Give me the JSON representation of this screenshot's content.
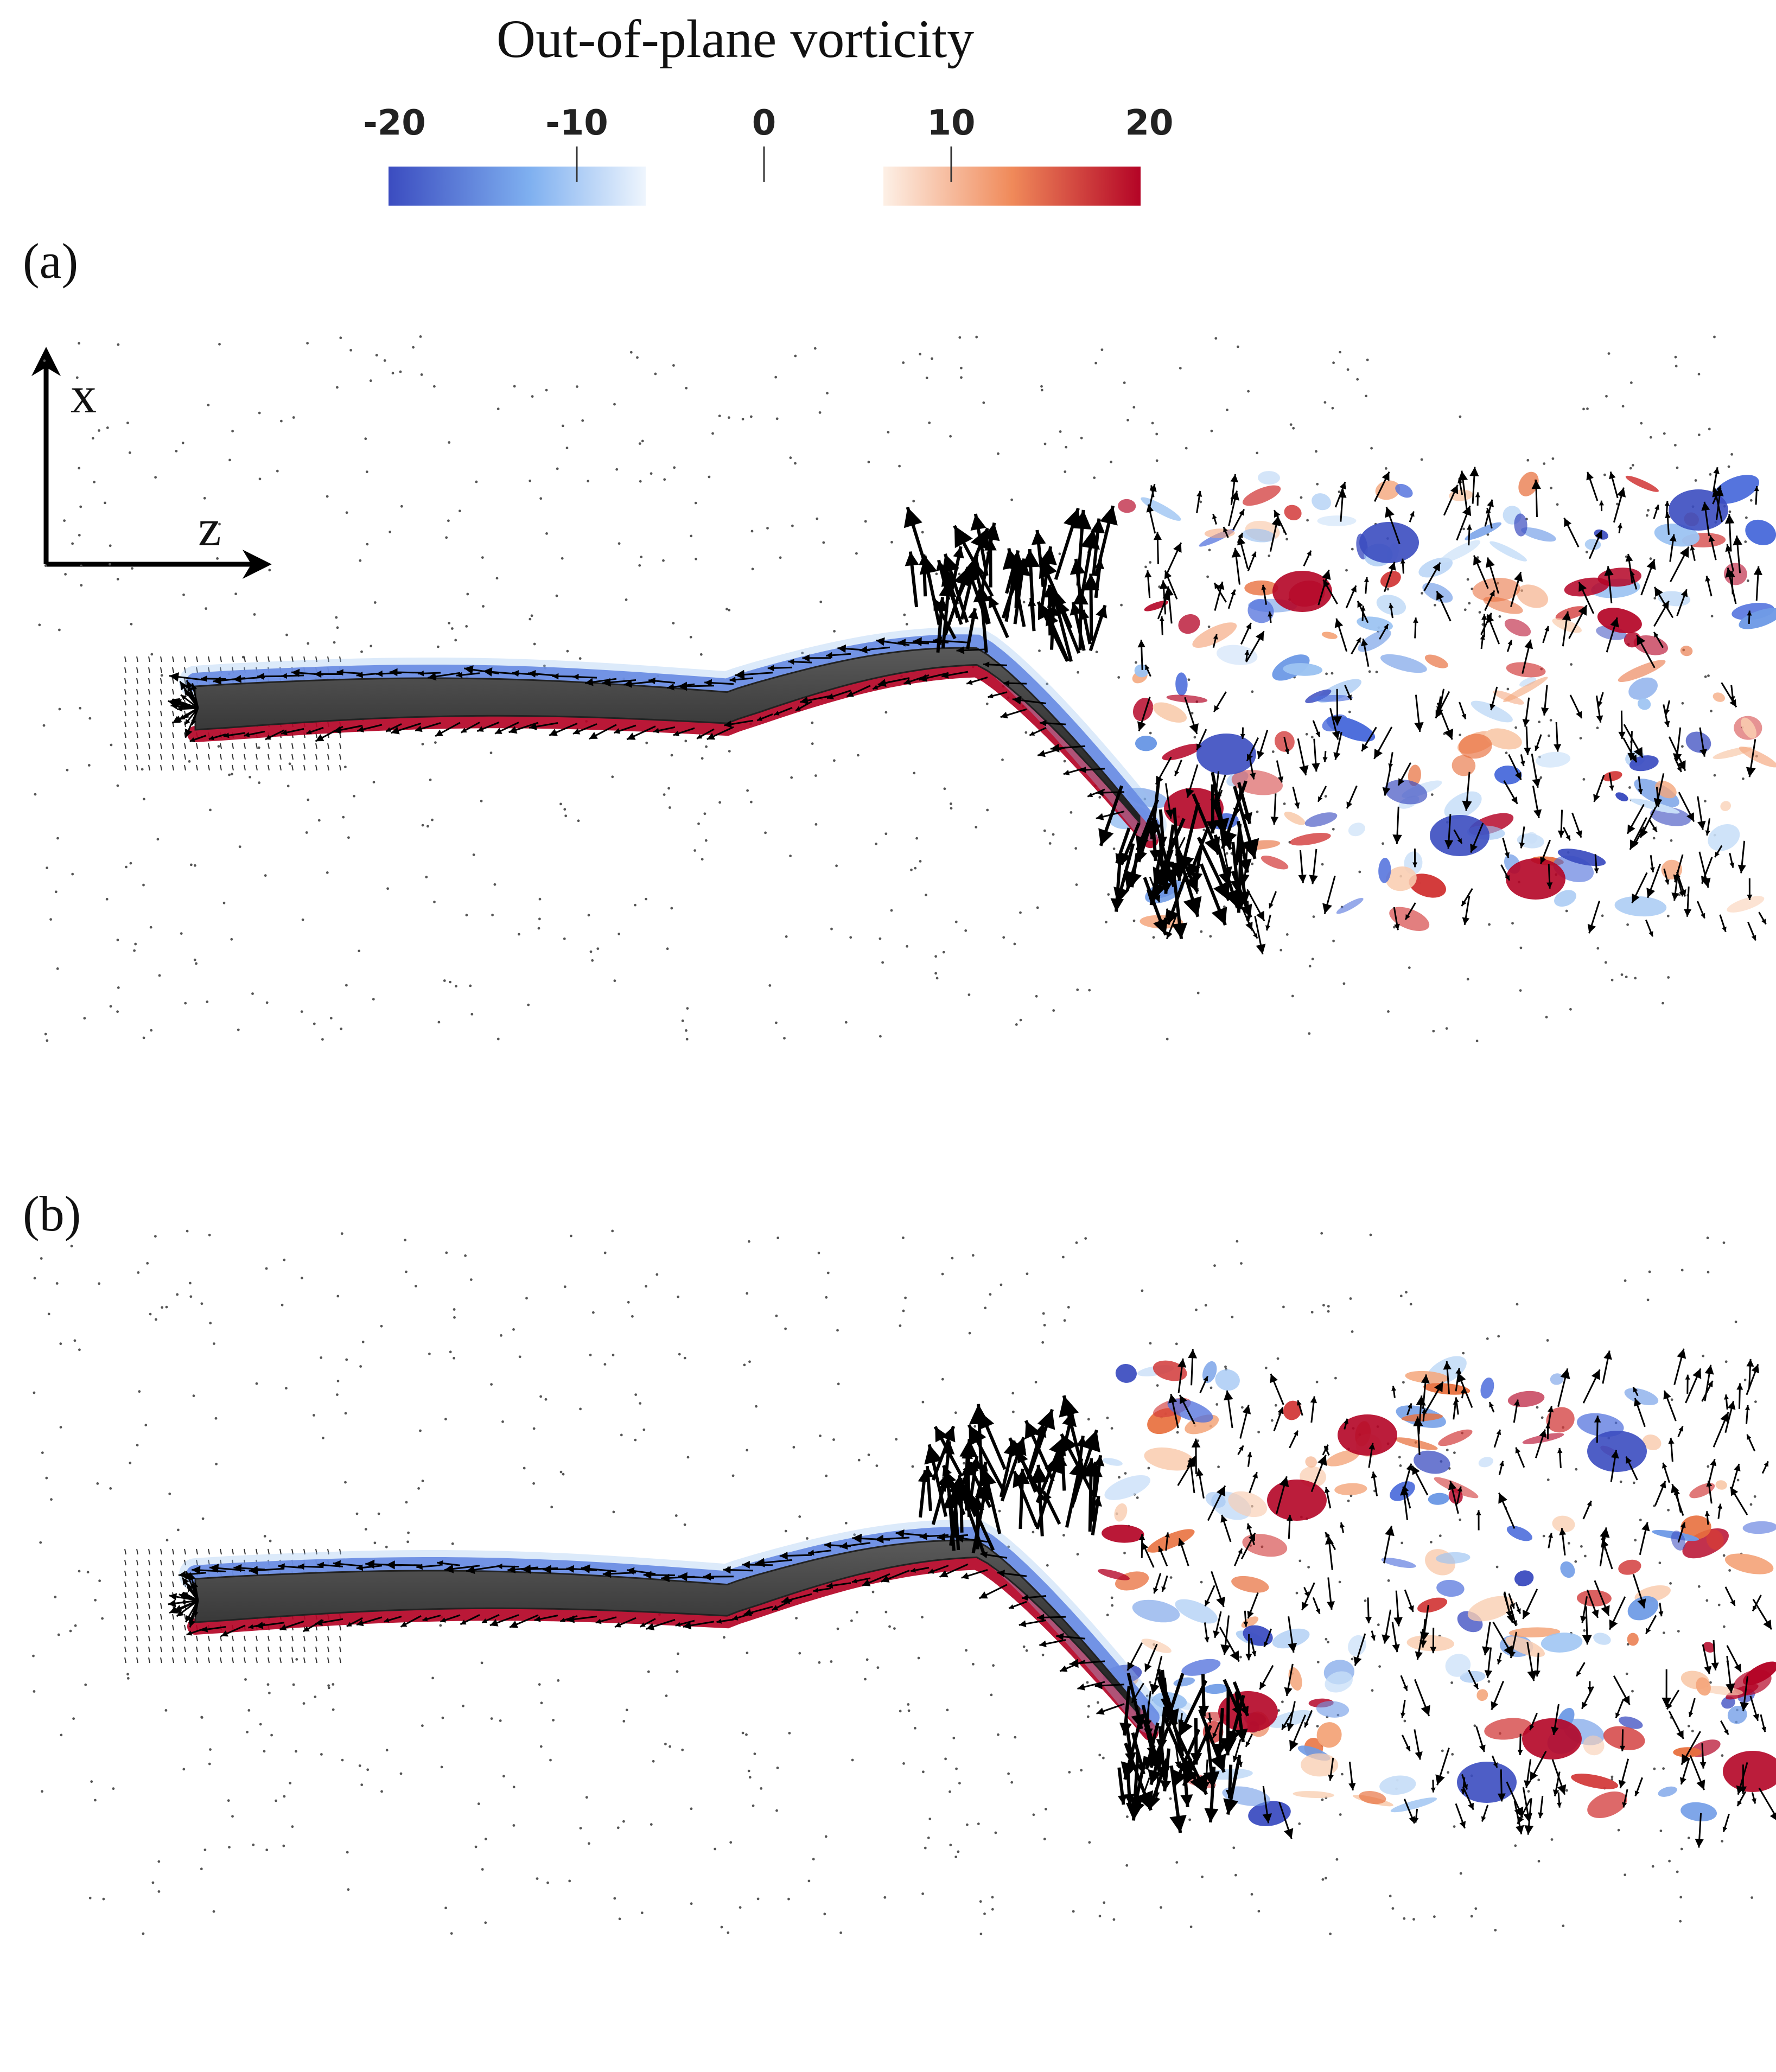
{
  "colorbar": {
    "title": "Out-of-plane vorticity",
    "ticks": [
      "-20",
      "-10",
      "0",
      "10",
      "20"
    ],
    "colors": {
      "neg_strong": "#3b4cc0",
      "neg_weak": "#e8f1fb",
      "pos_weak": "#fdeee3",
      "pos_strong": "#b40426"
    }
  },
  "panels": [
    {
      "label": "(a)"
    },
    {
      "label": "(b)"
    }
  ],
  "axes": {
    "x_label": "x",
    "z_label": "z"
  },
  "icons": [
    "axis-arrow-x",
    "axis-arrow-z",
    "velocity-arrow"
  ]
}
